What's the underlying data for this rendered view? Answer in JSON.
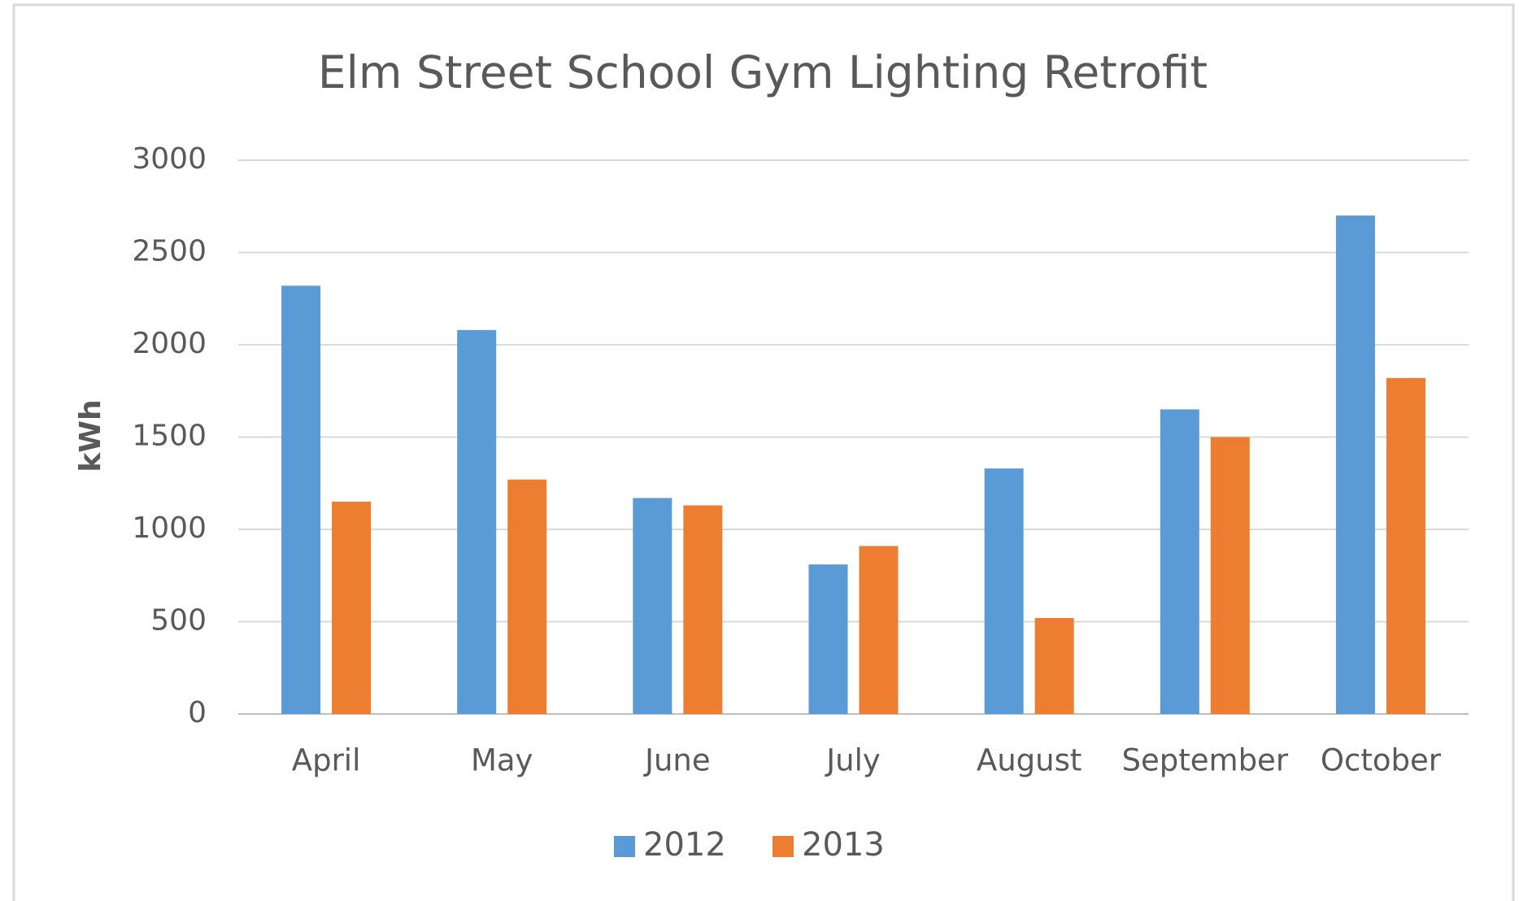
{
  "chart_data": {
    "type": "bar",
    "title": "Elm Street School Gym Lighting Retrofit",
    "y_label": "kWh",
    "categories": [
      "April",
      "May",
      "June",
      "July",
      "August",
      "September",
      "October"
    ],
    "series": [
      {
        "name": "2012",
        "color": "#5b9bd5",
        "values": [
          2320,
          2080,
          1170,
          810,
          1330,
          1650,
          2700
        ]
      },
      {
        "name": "2013",
        "color": "#ed7d31",
        "values": [
          1150,
          1270,
          1130,
          910,
          520,
          1500,
          1820
        ]
      }
    ],
    "ylim": [
      0,
      3000
    ],
    "yticks": [
      0,
      500,
      1000,
      1500,
      2000,
      2500,
      3000
    ],
    "grid": true,
    "legend": "bottom"
  }
}
